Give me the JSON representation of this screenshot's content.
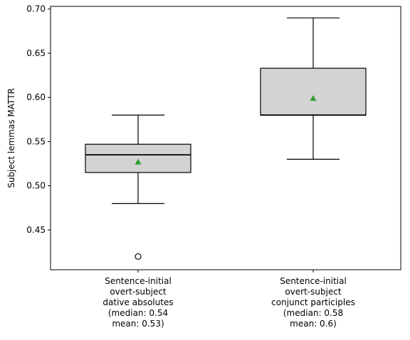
{
  "chart_data": {
    "type": "box",
    "title": "",
    "xlabel": "",
    "ylabel": "Subject lemmas MATTR",
    "ylim": [
      0.405,
      0.703
    ],
    "yticks": [
      0.45,
      0.5,
      0.55,
      0.6,
      0.65,
      0.7
    ],
    "ytick_labels": [
      "0.45",
      "0.50",
      "0.55",
      "0.60",
      "0.65",
      "0.70"
    ],
    "grid": false,
    "legend": "none",
    "colors": {
      "box_fill": "#d3d3d3",
      "box_edge": "#000000",
      "mean_marker": "#2ca02c",
      "outlier_edge": "#000000"
    },
    "categories": [
      {
        "label_lines": [
          "Sentence-initial",
          "overt-subject",
          "dative absolutes",
          "(median: 0.54",
          "mean: 0.53)"
        ],
        "whisker_low": 0.48,
        "q1": 0.515,
        "median": 0.535,
        "q3": 0.547,
        "whisker_high": 0.58,
        "mean": 0.527,
        "outliers": [
          0.42
        ]
      },
      {
        "label_lines": [
          "Sentence-initial",
          "overt-subject",
          "conjunct participles",
          "(median: 0.58",
          "mean: 0.6)"
        ],
        "whisker_low": 0.53,
        "q1": 0.58,
        "median": 0.58,
        "q3": 0.633,
        "whisker_high": 0.69,
        "mean": 0.599,
        "outliers": []
      }
    ]
  }
}
